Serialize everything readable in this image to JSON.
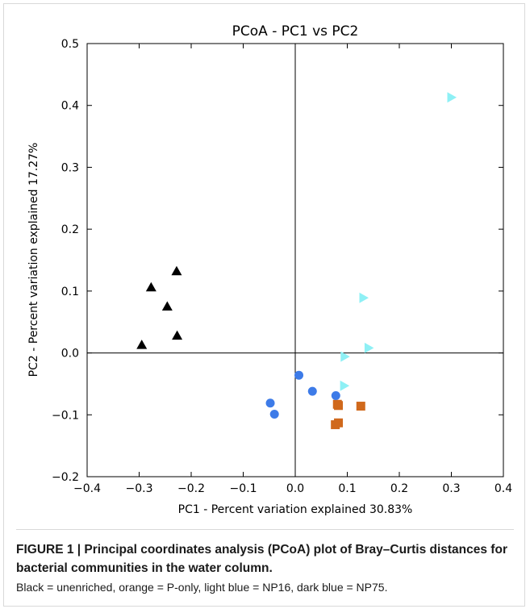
{
  "chart_data": {
    "type": "scatter",
    "title": "PCoA - PC1 vs PC2",
    "xlabel": "PC1 - Percent variation explained 30.83%",
    "ylabel": "PC2 - Percent variation explained 17.27%",
    "xlim": [
      -0.4,
      0.4
    ],
    "ylim": [
      -0.2,
      0.5
    ],
    "x_ticks": [
      "−0.4",
      "−0.3",
      "−0.2",
      "−0.1",
      "0.0",
      "0.1",
      "0.2",
      "0.3",
      "0.4"
    ],
    "y_ticks": [
      "−0.2",
      "−0.1",
      "0.0",
      "0.1",
      "0.2",
      "0.3",
      "0.4",
      "0.5"
    ],
    "zero_lines": true,
    "grid": false,
    "series": [
      {
        "marker": "triangle-up",
        "color": "#000000",
        "points": [
          [
            -0.295,
            0.013
          ],
          [
            -0.277,
            0.106
          ],
          [
            -0.246,
            0.075
          ],
          [
            -0.228,
            0.132
          ],
          [
            -0.227,
            0.028
          ]
        ]
      },
      {
        "marker": "square",
        "color": "#d0691c",
        "points": [
          [
            0.081,
            -0.083
          ],
          [
            0.083,
            -0.085
          ],
          [
            0.126,
            -0.086
          ],
          [
            0.077,
            -0.116
          ],
          [
            0.083,
            -0.113
          ]
        ]
      },
      {
        "marker": "triangle-right",
        "color": "#8ef0f5",
        "points": [
          [
            0.3,
            0.413
          ],
          [
            0.131,
            0.089
          ],
          [
            0.141,
            0.008
          ],
          [
            0.095,
            -0.006
          ],
          [
            0.094,
            -0.053
          ]
        ]
      },
      {
        "marker": "circle",
        "color": "#3d7be8",
        "points": [
          [
            0.007,
            -0.036
          ],
          [
            0.033,
            -0.062
          ],
          [
            0.078,
            -0.069
          ],
          [
            -0.048,
            -0.081
          ],
          [
            -0.04,
            -0.099
          ]
        ]
      }
    ]
  },
  "caption": {
    "title": "FIGURE 1 | Principal coordinates analysis (PCoA) plot of Bray–Curtis distances for bacterial communities in the water column.",
    "body": "Black = unenriched, orange = P-only, light blue = NP16, dark blue = NP75."
  }
}
